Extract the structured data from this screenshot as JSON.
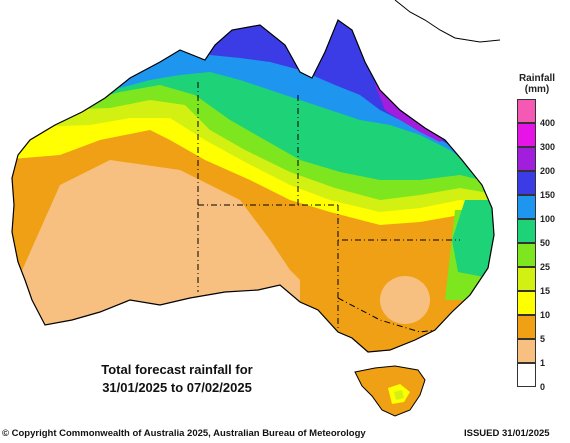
{
  "map": {
    "label_line1": "Total forecast rainfall for",
    "label_line2": "31/01/2025 to 07/02/2025",
    "coast_color": "#000000",
    "sea_color": "#ffffff"
  },
  "legend": {
    "title_line1": "Rainfall",
    "title_line2": "(mm)",
    "bins": [
      {
        "label": "400",
        "color": "#f45ab4"
      },
      {
        "label": "300",
        "color": "#e614e6"
      },
      {
        "label": "200",
        "color": "#a01edc"
      },
      {
        "label": "150",
        "color": "#3c3ce6"
      },
      {
        "label": "100",
        "color": "#1e96f0"
      },
      {
        "label": "50",
        "color": "#1ed278"
      },
      {
        "label": "25",
        "color": "#7ee61e"
      },
      {
        "label": "15",
        "color": "#d2f012"
      },
      {
        "label": "10",
        "color": "#ffff00"
      },
      {
        "label": "5",
        "color": "#f0a014"
      },
      {
        "label": "1",
        "color": "#f8c080"
      },
      {
        "label": "0",
        "color": "#ffffff"
      }
    ]
  },
  "footer": {
    "copyright": "© Copyright Commonwealth of Australia 2025, Australian Bureau of Meteorology",
    "issued": "ISSUED 31/01/2025"
  }
}
